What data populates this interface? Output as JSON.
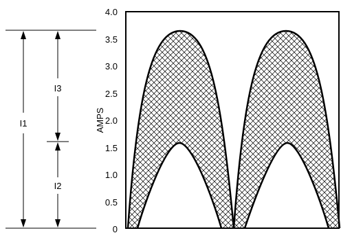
{
  "chart_data": {
    "type": "area",
    "ylabel": "AMPS",
    "xlabel": "",
    "title": "",
    "ylim": [
      0,
      4.0
    ],
    "y_ticks": [
      "4.0",
      "3.5",
      "3.0",
      "2.5",
      "2.0",
      "1.5",
      "1.0",
      "0.5",
      "0"
    ],
    "grid": false,
    "series": [
      {
        "x": [
          0,
          0.5,
          1,
          1.5,
          2,
          2.5,
          3,
          3.5,
          4
        ],
        "values": [
          0,
          3.65,
          0,
          0,
          0,
          3.65,
          0,
          0,
          0
        ]
      },
      {
        "x": [
          0,
          0.5,
          1,
          1.5,
          2,
          2.5,
          3,
          3.5,
          4
        ],
        "values": [
          0,
          1.6,
          0,
          0,
          0,
          1.6,
          0,
          0,
          0
        ]
      }
    ],
    "shaded_region": "between upper and lower curves (crosshatched)",
    "dimension_labels": {
      "total": "I1",
      "upper_part": "I3",
      "lower_part": "I2"
    },
    "levels": {
      "peak": 3.65,
      "lower_peak": 1.6,
      "base": 0
    }
  },
  "colors": {
    "ink": "#000000",
    "background": "#ffffff"
  }
}
